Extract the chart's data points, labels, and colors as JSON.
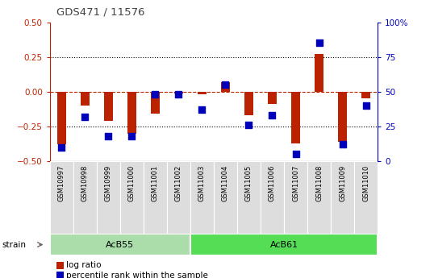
{
  "title": "GDS471 / 11576",
  "samples": [
    "GSM10997",
    "GSM10998",
    "GSM10999",
    "GSM11000",
    "GSM11001",
    "GSM11002",
    "GSM11003",
    "GSM11004",
    "GSM11005",
    "GSM11006",
    "GSM11007",
    "GSM11008",
    "GSM11009",
    "GSM11010"
  ],
  "log_ratio": [
    -0.38,
    -0.1,
    -0.21,
    -0.3,
    -0.16,
    -0.01,
    -0.02,
    0.07,
    -0.17,
    -0.09,
    -0.37,
    0.27,
    -0.36,
    -0.05
  ],
  "percentile_rank": [
    10,
    32,
    18,
    18,
    48,
    48,
    37,
    55,
    26,
    33,
    5,
    85,
    12,
    40
  ],
  "groups": [
    {
      "label": "AcB55",
      "start": 0,
      "end": 5,
      "color": "#90ee90"
    },
    {
      "label": "AcB61",
      "start": 6,
      "end": 13,
      "color": "#90ee90"
    }
  ],
  "group_row_label": "strain",
  "ylim_left": [
    -0.5,
    0.5
  ],
  "ylim_right": [
    0,
    100
  ],
  "yticks_left": [
    -0.5,
    -0.25,
    0,
    0.25,
    0.5
  ],
  "yticks_right": [
    0,
    25,
    50,
    75,
    100
  ],
  "hline_dotted": [
    -0.25,
    0.25
  ],
  "hline_red_dashed": 0,
  "bar_color": "#bb2200",
  "dot_color": "#0000bb",
  "dot_size": 28,
  "bar_width": 0.4,
  "bg_color": "#ffffff",
  "title_color": "#444444",
  "left_axis_color": "#bb2200",
  "right_axis_color": "#0000bb",
  "legend_items": [
    {
      "label": "log ratio",
      "color": "#bb2200"
    },
    {
      "label": "percentile rank within the sample",
      "color": "#0000bb"
    }
  ],
  "group_divider": 5.5,
  "group_colors": [
    "#aaddaa",
    "#66dd66"
  ]
}
